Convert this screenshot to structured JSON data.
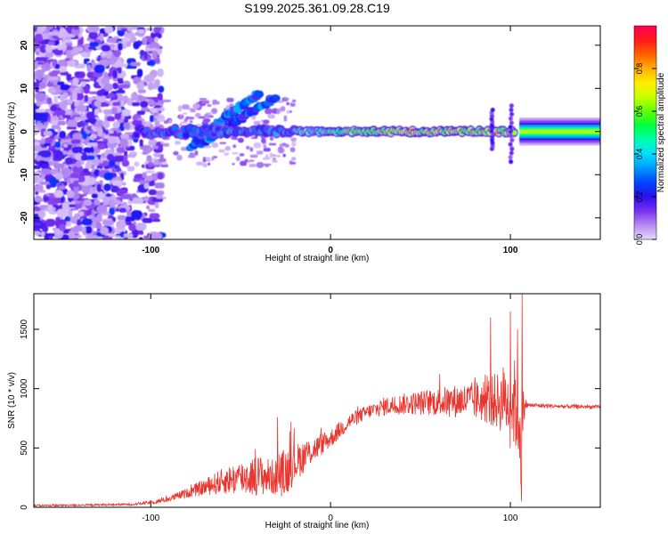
{
  "title": "S199.2025.361.09.28.C19",
  "chart_data": [
    {
      "type": "heatmap",
      "name": "spectrogram",
      "xlabel": "Height of straight line (km)",
      "ylabel": "Frequency (Hz)",
      "xlim": [
        -165,
        150
      ],
      "ylim": [
        -25,
        24.5
      ],
      "xticks": [
        -100,
        0,
        100
      ],
      "yticks": [
        -20,
        -10,
        0,
        10,
        20
      ],
      "grid": false,
      "colorbar": {
        "label": "Normalized spectral amplitude",
        "range": [
          0,
          1
        ],
        "ticks": [
          0.0,
          0.2,
          0.4,
          0.6,
          0.8
        ],
        "tick_labels": [
          "0.0",
          "0.2",
          "0.4",
          "0.6",
          "0.8"
        ],
        "colors": [
          "#e8d8ff",
          "#b48cf0",
          "#7a30f0",
          "#2a10f0",
          "#0044ff",
          "#0099ff",
          "#00e0ff",
          "#00ffb0",
          "#00ff40",
          "#60ff00",
          "#c8ff00",
          "#ffee00",
          "#ffb000",
          "#ff6000",
          "#ff1a1a",
          "#ff0050"
        ]
      },
      "features": {
        "noise_band_km": [
          -165,
          -100
        ],
        "line_center_hz": 0,
        "strong_band_from_km": 105,
        "sweeps": [
          {
            "from": [
              -78,
              -4
            ],
            "to": [
              -40,
              9
            ]
          },
          {
            "from": [
              -72,
              -3
            ],
            "to": [
              -30,
              8
            ]
          }
        ]
      }
    },
    {
      "type": "line",
      "name": "snr",
      "xlabel": "Height of straight line (km)",
      "ylabel": "SNR (10 * v/v)",
      "xlim": [
        -165,
        150
      ],
      "ylim": [
        0,
        1800
      ],
      "xticks": [
        -100,
        0,
        100
      ],
      "yticks": [
        0,
        500,
        1000,
        1500
      ],
      "color": "#e8352e",
      "grid": false,
      "envelope": {
        "x": [
          -165,
          -140,
          -110,
          -100,
          -90,
          -80,
          -70,
          -60,
          -50,
          -40,
          -30,
          -25,
          -20,
          -15,
          -10,
          0,
          10,
          20,
          30,
          40,
          60,
          80,
          90,
          100,
          104,
          106,
          108,
          110,
          130,
          150
        ],
        "mean": [
          15,
          18,
          25,
          40,
          70,
          120,
          170,
          220,
          250,
          270,
          250,
          300,
          370,
          430,
          480,
          580,
          720,
          800,
          850,
          870,
          890,
          900,
          900,
          880,
          860,
          600,
          870,
          860,
          850,
          845
        ],
        "amp": [
          8,
          8,
          10,
          15,
          25,
          40,
          70,
          110,
          150,
          170,
          150,
          220,
          160,
          140,
          110,
          80,
          70,
          60,
          80,
          90,
          120,
          160,
          220,
          300,
          450,
          500,
          60,
          20,
          18,
          16
        ]
      },
      "spikes": [
        {
          "x": -29.5,
          "y": 760
        },
        {
          "x": -22,
          "y": 720
        },
        {
          "x": 89,
          "y": 1600
        },
        {
          "x": 96,
          "y": 1180
        },
        {
          "x": 100,
          "y": 1650
        },
        {
          "x": 104,
          "y": 1500
        },
        {
          "x": 106.5,
          "y": 1800
        },
        {
          "x": 106.2,
          "y": 50
        }
      ]
    }
  ]
}
